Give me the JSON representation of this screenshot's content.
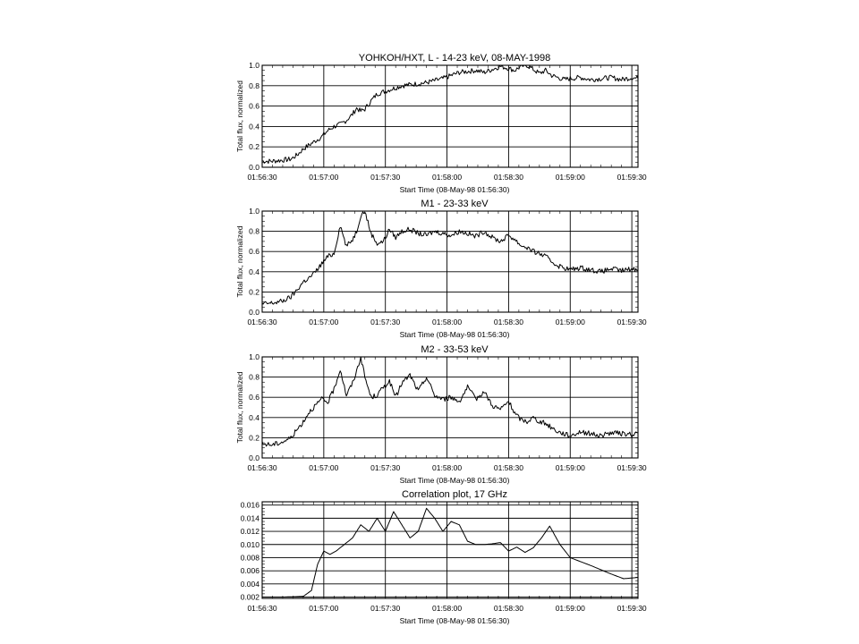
{
  "chart_data": [
    {
      "type": "line",
      "title": "YOHKOH/HXT, L - 14-23 keV, 08-MAY-1998",
      "ylabel": "Total flux, normalized",
      "xlabel": "Start Time (08-May-98 01:56:30)",
      "xticks": [
        "01:56:30",
        "01:57:00",
        "01:57:30",
        "01:58:00",
        "01:58:30",
        "01:59:00",
        "01:59:30"
      ],
      "yticks": [
        "0.0",
        "0.2",
        "0.4",
        "0.6",
        "0.8",
        "1.0"
      ],
      "xlim": [
        0,
        183
      ],
      "ylim": [
        0,
        1.0
      ],
      "grid": true,
      "series": [
        {
          "x": [
            0,
            5,
            10,
            14,
            17,
            20,
            23,
            26,
            29,
            32,
            35,
            38,
            41,
            44,
            46,
            48,
            50,
            53,
            56,
            59,
            62,
            65,
            68,
            72,
            76,
            80,
            84,
            88,
            92,
            96,
            100,
            104,
            108,
            112,
            116,
            120,
            123,
            126,
            129,
            132,
            135,
            138,
            141,
            144,
            147,
            150,
            155,
            160,
            165,
            170,
            175,
            180,
            183
          ],
          "y": [
            0.06,
            0.06,
            0.07,
            0.08,
            0.12,
            0.18,
            0.22,
            0.26,
            0.3,
            0.36,
            0.4,
            0.42,
            0.46,
            0.52,
            0.58,
            0.55,
            0.57,
            0.65,
            0.72,
            0.74,
            0.76,
            0.78,
            0.8,
            0.81,
            0.82,
            0.83,
            0.85,
            0.87,
            0.9,
            0.93,
            0.94,
            0.95,
            0.93,
            0.96,
            0.99,
            0.97,
            0.95,
            0.99,
            1.0,
            0.96,
            0.92,
            0.95,
            0.9,
            0.88,
            0.86,
            0.87,
            0.88,
            0.86,
            0.87,
            0.88,
            0.86,
            0.88,
            0.87
          ]
        }
      ]
    },
    {
      "type": "line",
      "title": "M1 - 23-33 keV",
      "ylabel": "Total flux, normalized",
      "xlabel": "Start Time (08-May-98 01:56:30)",
      "xticks": [
        "01:56:30",
        "01:57:00",
        "01:57:30",
        "01:58:00",
        "01:58:30",
        "01:59:00",
        "01:59:30"
      ],
      "yticks": [
        "0.0",
        "0.2",
        "0.4",
        "0.6",
        "0.8",
        "1.0"
      ],
      "xlim": [
        0,
        183
      ],
      "ylim": [
        0,
        1.0
      ],
      "grid": true,
      "series": [
        {
          "x": [
            0,
            5,
            10,
            14,
            17,
            20,
            23,
            26,
            29,
            32,
            35,
            38,
            41,
            44,
            46,
            48,
            50,
            53,
            56,
            59,
            62,
            65,
            68,
            72,
            76,
            80,
            84,
            88,
            92,
            96,
            100,
            104,
            108,
            112,
            116,
            120,
            123,
            126,
            129,
            132,
            135,
            138,
            141,
            144,
            147,
            150,
            155,
            160,
            165,
            170,
            175,
            180,
            183
          ],
          "y": [
            0.08,
            0.09,
            0.11,
            0.15,
            0.22,
            0.3,
            0.34,
            0.4,
            0.48,
            0.55,
            0.58,
            0.86,
            0.65,
            0.72,
            0.8,
            0.96,
            1.0,
            0.78,
            0.68,
            0.7,
            0.82,
            0.74,
            0.8,
            0.82,
            0.78,
            0.76,
            0.8,
            0.78,
            0.76,
            0.8,
            0.78,
            0.75,
            0.8,
            0.74,
            0.7,
            0.76,
            0.72,
            0.66,
            0.64,
            0.6,
            0.58,
            0.55,
            0.5,
            0.46,
            0.44,
            0.42,
            0.44,
            0.42,
            0.4,
            0.43,
            0.41,
            0.43,
            0.42
          ]
        }
      ]
    },
    {
      "type": "line",
      "title": "M2 - 33-53 keV",
      "ylabel": "Total flux, normalized",
      "xlabel": "Start Time (08-May-98 01:56:30)",
      "xticks": [
        "01:56:30",
        "01:57:00",
        "01:57:30",
        "01:58:00",
        "01:58:30",
        "01:59:00",
        "01:59:30"
      ],
      "yticks": [
        "0.0",
        "0.2",
        "0.4",
        "0.6",
        "0.8",
        "1.0"
      ],
      "xlim": [
        0,
        183
      ],
      "ylim": [
        0,
        1.0
      ],
      "grid": true,
      "series": [
        {
          "x": [
            0,
            5,
            10,
            14,
            17,
            20,
            23,
            26,
            29,
            32,
            35,
            38,
            41,
            44,
            46,
            48,
            50,
            53,
            56,
            59,
            62,
            65,
            68,
            72,
            76,
            80,
            84,
            88,
            92,
            96,
            100,
            104,
            108,
            112,
            116,
            120,
            123,
            126,
            129,
            132,
            135,
            138,
            141,
            144,
            147,
            150,
            155,
            160,
            165,
            170,
            175,
            180,
            183
          ],
          "y": [
            0.14,
            0.13,
            0.16,
            0.2,
            0.28,
            0.36,
            0.46,
            0.52,
            0.58,
            0.55,
            0.68,
            0.88,
            0.62,
            0.74,
            0.86,
            1.0,
            0.8,
            0.6,
            0.62,
            0.7,
            0.76,
            0.6,
            0.74,
            0.82,
            0.66,
            0.8,
            0.62,
            0.58,
            0.6,
            0.56,
            0.7,
            0.58,
            0.66,
            0.52,
            0.48,
            0.56,
            0.44,
            0.38,
            0.36,
            0.4,
            0.36,
            0.34,
            0.3,
            0.26,
            0.24,
            0.22,
            0.26,
            0.24,
            0.22,
            0.25,
            0.24,
            0.23,
            0.25
          ]
        }
      ]
    },
    {
      "type": "line",
      "title": "Correlation plot, 17 GHz",
      "xlabel": "Start Time (08-May-98 01:56:30)",
      "xticks": [
        "01:56:30",
        "01:57:00",
        "01:57:30",
        "01:58:00",
        "01:58:30",
        "01:59:00",
        "01:59:30"
      ],
      "yticks": [
        "0.002",
        "0.004",
        "0.006",
        "0.008",
        "0.010",
        "0.012",
        "0.014",
        "0.016"
      ],
      "xlim": [
        0,
        183
      ],
      "ylim": [
        0.0018,
        0.0165
      ],
      "grid": true,
      "series": [
        {
          "x": [
            0,
            10,
            20,
            24,
            27,
            30,
            33,
            36,
            40,
            44,
            48,
            52,
            56,
            60,
            64,
            68,
            72,
            76,
            80,
            84,
            88,
            92,
            96,
            100,
            104,
            108,
            112,
            116,
            120,
            124,
            128,
            132,
            136,
            140,
            145,
            150,
            160,
            170,
            176,
            180,
            183
          ],
          "y": [
            0.002,
            0.002,
            0.0021,
            0.003,
            0.007,
            0.009,
            0.0085,
            0.009,
            0.01,
            0.011,
            0.013,
            0.012,
            0.014,
            0.012,
            0.015,
            0.013,
            0.011,
            0.012,
            0.0155,
            0.014,
            0.012,
            0.0135,
            0.013,
            0.0105,
            0.01,
            0.01,
            0.0101,
            0.0103,
            0.009,
            0.0096,
            0.0088,
            0.0095,
            0.011,
            0.0128,
            0.01,
            0.008,
            0.0068,
            0.0055,
            0.0048,
            0.0049,
            0.005
          ]
        }
      ]
    }
  ]
}
